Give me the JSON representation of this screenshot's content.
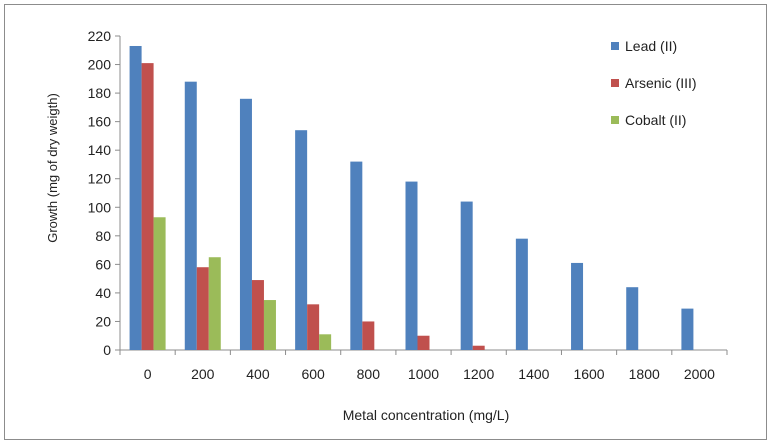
{
  "chart_data": {
    "type": "bar",
    "title": "",
    "xlabel": "Metal concentration (mg/L)",
    "ylabel": "Growth (mg of dry weigth)",
    "ylim": [
      0,
      220
    ],
    "ytick_step": 20,
    "grid": false,
    "legend_position": "top-right",
    "categories": [
      "0",
      "200",
      "400",
      "600",
      "800",
      "1000",
      "1200",
      "1400",
      "1600",
      "1800",
      "2000"
    ],
    "series": [
      {
        "name": "Lead (II)",
        "color": "#4f81bd",
        "values": [
          213,
          188,
          176,
          154,
          132,
          118,
          104,
          78,
          61,
          44,
          29
        ]
      },
      {
        "name": "Arsenic (III)",
        "color": "#c0504d",
        "values": [
          201,
          58,
          49,
          32,
          20,
          10,
          3,
          0,
          0,
          0,
          0
        ]
      },
      {
        "name": "Cobalt (II)",
        "color": "#9bbb59",
        "values": [
          93,
          65,
          35,
          11,
          0,
          0,
          0,
          0,
          0,
          0,
          0
        ]
      }
    ]
  }
}
